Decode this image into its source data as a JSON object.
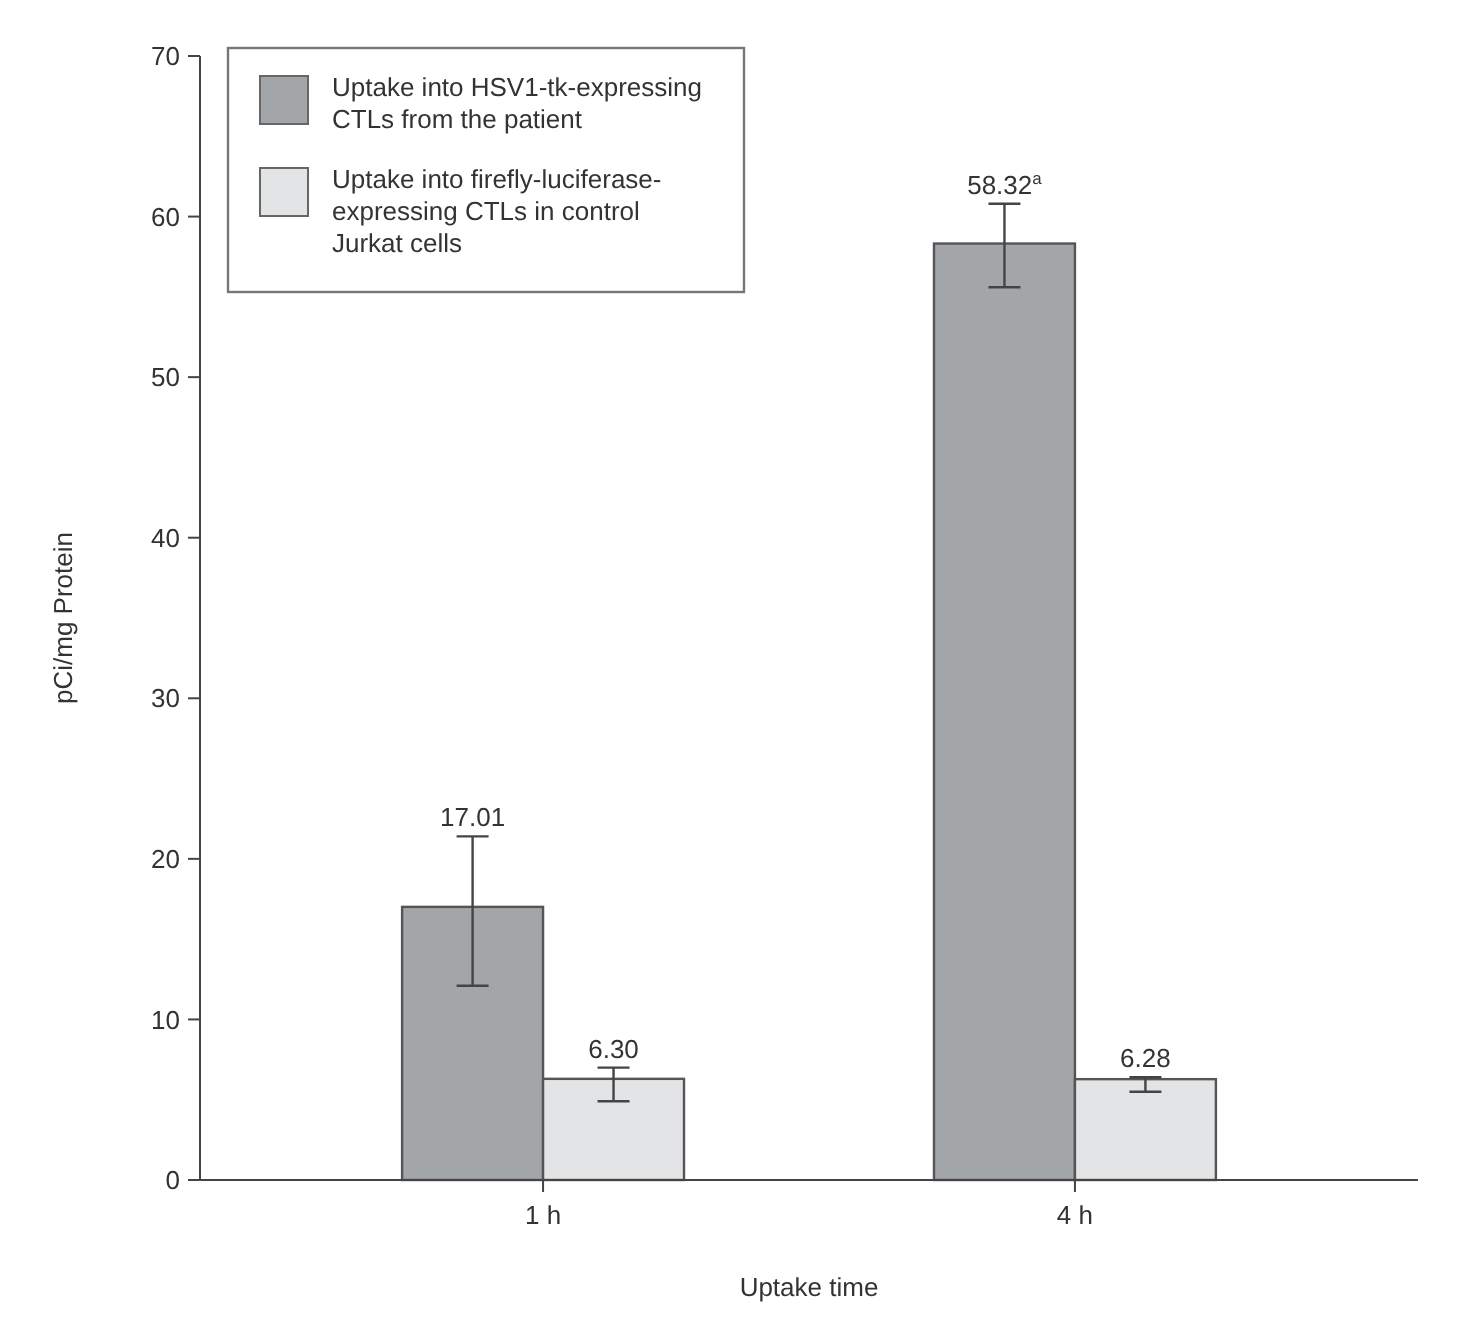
{
  "chart_data": {
    "type": "bar",
    "xlabel": "Uptake time",
    "ylabel": "pCi/mg Protein",
    "categories": [
      "1 h",
      "4 h"
    ],
    "series": [
      {
        "name": "Uptake into HSV1-tk-expressing CTLs from the patient",
        "color": "#a3a6a9",
        "values": [
          17.01,
          58.32
        ],
        "errors": [
          [
            12.1,
            21.4
          ],
          [
            55.6,
            60.8
          ]
        ],
        "value_labels": [
          "17.01",
          "58.32$^{a}$"
        ]
      },
      {
        "name": "Uptake into firefly-luciferase-expressing CTLs in control Jurkat cells",
        "color": "#e2e4e6",
        "values": [
          6.3,
          6.28
        ],
        "errors": [
          [
            4.9,
            7.0
          ],
          [
            5.5,
            6.4
          ]
        ],
        "value_labels": [
          "6.30",
          "6.28"
        ]
      }
    ],
    "ylim": [
      0,
      70
    ],
    "yticks": [
      0,
      10,
      20,
      30,
      40,
      50,
      60,
      70
    ],
    "legend": "top left",
    "grid": false
  }
}
